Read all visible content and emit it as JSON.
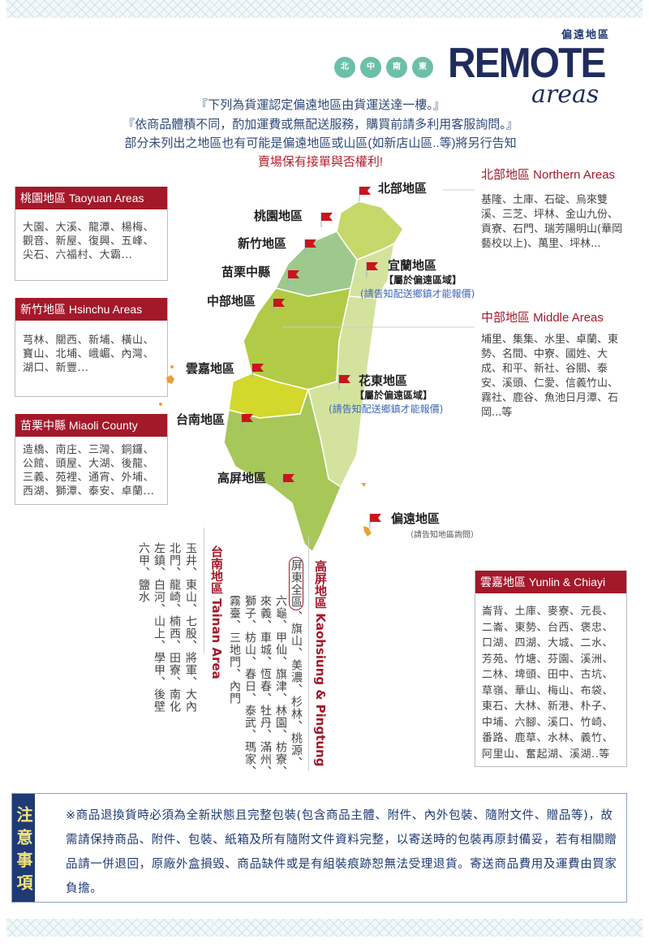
{
  "header": {
    "subtitle": "偏遠地區",
    "title": "REMOTE",
    "script": "areas",
    "circles": [
      "北",
      "中",
      "南",
      "東"
    ]
  },
  "intro": [
    "『下列為貨運認定偏遠地區由貨運送達一樓。』",
    "『依商品體積不同，酌加運費或無配送服務，購買前請多利用客服詢問。』",
    "部分未列出之地區也有可能是偏遠地區或山區(如新店山區..等)將另行告知",
    "賣場保有接單與否權利!"
  ],
  "left_boxes": [
    {
      "title": "桃園地區 Taoyuan Areas",
      "text": "大園、大溪、龍潭、楊梅、觀音、新屋、復興、五峰、尖石、六福村、大霸..."
    },
    {
      "title": "新竹地區 Hsinchu Areas",
      "text": "芎林、關西、新埔、橫山、寶山、北埔、峨嵋、內灣、湖口、新豐..."
    },
    {
      "title": "苗栗中縣 Miaoli County",
      "text": "造橋、南庄、三灣、銅鑼、公館、頭屋、大湖、後龍、三義、苑裡、通宵、外埔、西湖、獅潭、泰安、卓蘭..."
    }
  ],
  "right_sections": [
    {
      "title": "北部地區 Northern Areas",
      "text": "基隆、土庫、石碇、烏來雙溪、三芝、坪林、金山九份、貢寮、石門、瑞芳陽明山(華岡藝校以上)、萬里、坪林..."
    },
    {
      "title": "中部地區 Middle Areas",
      "text": "埔里、集集、水里、卓蘭、東勢、名間、中寮、國姓、大成、和平、新社、谷關、泰安、溪頭、仁愛、信義竹山、霧社、鹿谷、魚池日月潭、石岡...等"
    }
  ],
  "map_labels": {
    "north": "北部地區",
    "taoyuan": "桃園地區",
    "hsinchu": "新竹地區",
    "miaoli": "苗栗中縣",
    "middle": "中部地區",
    "yilan": "宜蘭地區",
    "yilan_note": "【屬於偏遠區域】",
    "yilan_note2": "(請告知配送鄉鎮才能報價)",
    "yunchia": "雲嘉地區",
    "hualien": "花東地區",
    "hualien_note": "【屬於偏遠區域】",
    "hualien_note2": "(請告知配送鄉鎮才能報價)",
    "tainan": "台南地區",
    "kaoping": "高屏地區",
    "remote": "偏遠地區",
    "remote_note": "（請告知地區詢問）"
  },
  "tainan": {
    "title": "台南地區 Tainan Area",
    "columns": [
      "玉井、東山、七股、將軍、大內",
      "北門、龍崎、楠西、田寮、南化",
      "左鎮、白河、山上、學甲、後壁",
      "六甲、鹽水"
    ]
  },
  "kaoping": {
    "title": "高屏地區 Kaohsiung & Pingtung",
    "highlight": "屏東全區",
    "columns": [
      "、旗山、美濃、杉林、桃源、",
      "六龜、甲仙、旗津、林園、枋寮、",
      "來義、車城、恆春、牡丹、滿州、",
      "獅子、枋山、春日、泰武、瑪家、",
      "霧臺、三地門、內門"
    ]
  },
  "yunchia": {
    "title": "雲嘉地區 Yunlin & Chiayi",
    "text": "崙背、土庫、麥寮、元長、二崙、東勢、台西、褒忠、口湖、四湖、大城、二水、芳苑、竹塘、芬園、溪洲、二林、埤頭、田中、古坑、草嶺、華山、梅山、布袋、東石、大林、新港、朴子、中埔、六腳、溪口、竹崎、番路、鹿草、水林、義竹、阿里山、奮起湖、溪湖..等"
  },
  "notice": {
    "label": "注意事項",
    "text": "※商品退換貨時必須為全新狀態且完整包裝(包含商品主體、附件、內外包裝、隨附文件、贈品等)，故需請保持商品、附件、包裝、紙箱及所有隨附文件資料完整，以寄送時的包裝再原封備妥，若有相關贈品請一併退回，原廠外盒損毀、商品缺件或是有組裝痕跡恕無法受理退貨。寄送商品費用及運費由買家負擔。"
  },
  "colors": {
    "accent_red": "#a3192a",
    "navy": "#1f3a74",
    "teal": "#6dbfa8",
    "link_blue": "#3f66b8"
  }
}
